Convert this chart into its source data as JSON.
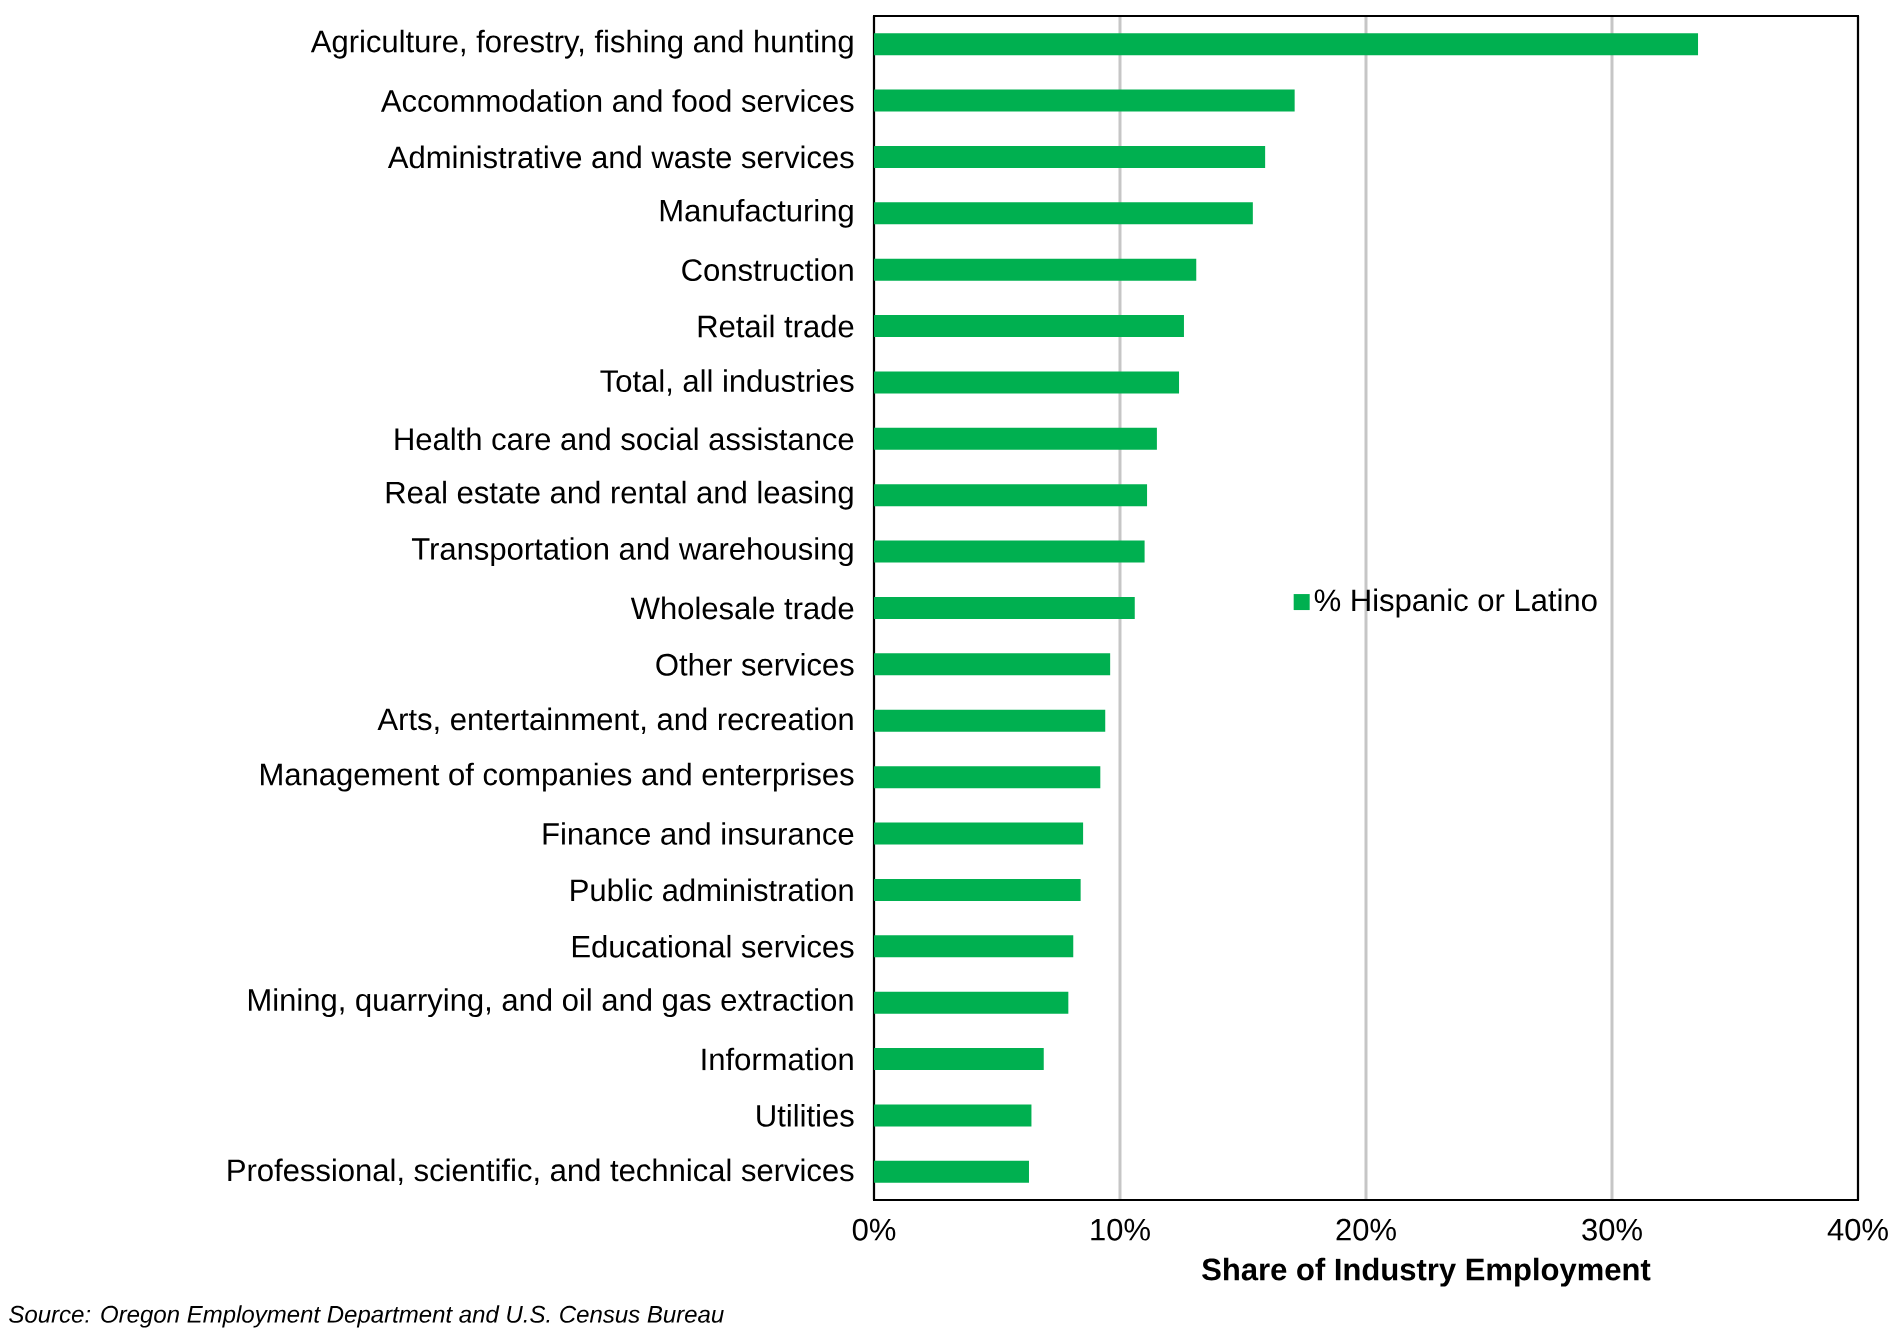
{
  "chart_data": {
    "type": "bar",
    "orientation": "horizontal",
    "categories": [
      "Agriculture, forestry, fishing and hunting",
      "Accommodation and food services",
      "Administrative and waste services",
      "Manufacturing",
      "Construction",
      "Retail trade",
      "Total, all industries",
      "Health care and social assistance",
      "Real estate and rental and leasing",
      "Transportation and warehousing",
      "Wholesale trade",
      "Other services",
      "Arts, entertainment, and recreation",
      "Management of companies and enterprises",
      "Finance and insurance",
      "Public administration",
      "Educational services",
      "Mining, quarrying, and oil and gas extraction",
      "Information",
      "Utilities",
      "Professional, scientific, and technical services"
    ],
    "series": [
      {
        "name": "% Hispanic or Latino",
        "color": "#00b050",
        "values": [
          33.5,
          17.1,
          15.9,
          15.4,
          13.1,
          12.6,
          12.4,
          11.5,
          11.1,
          11.0,
          10.6,
          9.6,
          9.4,
          9.2,
          8.5,
          8.4,
          8.1,
          7.9,
          6.9,
          6.4,
          6.3
        ]
      }
    ],
    "xlim": [
      0,
      40
    ],
    "xticks": [
      {
        "value": 0,
        "label": "0%"
      },
      {
        "value": 10,
        "label": "10%"
      },
      {
        "value": 20,
        "label": "20%"
      },
      {
        "value": 30,
        "label": "30%"
      },
      {
        "value": 40,
        "label": "40%"
      }
    ],
    "xlabel": "Share of Industry Employment",
    "grid": "x",
    "legend": "right",
    "annotations": [
      "Source: Oregon Employment Department and U.S. Census Bureau"
    ]
  }
}
